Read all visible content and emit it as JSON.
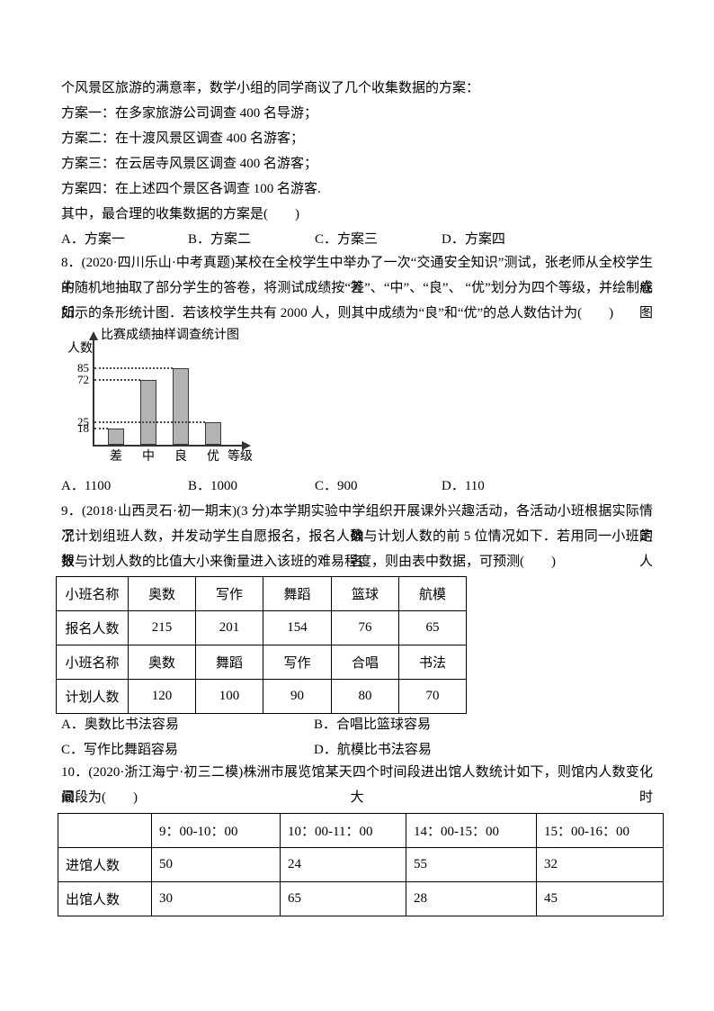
{
  "intro": {
    "lines": [
      "个风景区旅游的满意率，数学小组的同学商议了几个收集数据的方案：",
      "方案一：在多家旅游公司调查 400 名导游；",
      "方案二：在十渡风景区调查 400 名游客；",
      "方案三：在云居寺风景区调查 400 名游客；",
      "方案四：在上述四个景区各调查 100 名游客.",
      "其中，最合理的收集数据的方案是(　　)"
    ],
    "options": [
      "A．方案一",
      "B．方案二",
      "C．方案三",
      "D．方案四"
    ]
  },
  "q8": {
    "lines": [
      "8．(2020·四川乐山·中考真题)某校在全校学生中举办了一次“交通安全知识”测试，张老师从全校学生的答卷",
      "中随机地抽取了部分学生的答卷，将测试成绩按“差”、“中”、“良”、 “优”划分为四个等级，并绘制成如图",
      "所示的条形统计图．若该校学生共有 2000 人，则其中成绩为“良”和“优”的总人数估计为(　　)"
    ],
    "options": [
      "A．1100",
      "B．1000",
      "C．900",
      "D．110"
    ]
  },
  "chart_data": {
    "type": "bar",
    "title": "比赛成绩抽样调查统计图",
    "xlabel": "等级",
    "ylabel": "人数",
    "categories": [
      "差",
      "中",
      "良",
      "优"
    ],
    "values": [
      18,
      72,
      85,
      25
    ],
    "yticks": [
      18,
      25,
      72,
      85
    ],
    "ylim": [
      0,
      100
    ],
    "grid": "dashed-line-from-axis-to-bar",
    "legend": "none",
    "bar_color": "#b3b3b3",
    "bar_border": "#3a3a3a"
  },
  "q9": {
    "lines": [
      "9．(2018·山西灵石·初一期末)(3 分)本学期实验中学组织开展课外兴趣活动，各活动小班根据实际情况确定",
      "了计划组班人数，并发动学生自愿报名，报名人数与计划人数的前 5 位情况如下．若用同一小班的报名人",
      "数与计划人数的比值大小来衡量进入该班的难易程度，则由表中数据，可预测(　　)"
    ],
    "options": [
      "A．奥数比书法容易",
      "B．合唱比篮球容易",
      "C．写作比舞蹈容易",
      "D．航模比书法容易"
    ]
  },
  "table1": {
    "rows": [
      [
        "小班名称",
        "奥数",
        "写作",
        "舞蹈",
        "篮球",
        "航模"
      ],
      [
        "报名人数",
        "215",
        "201",
        "154",
        "76",
        "65"
      ],
      [
        "小班名称",
        "奥数",
        "舞蹈",
        "写作",
        "合唱",
        "书法"
      ],
      [
        "计划人数",
        "120",
        "100",
        "90",
        "80",
        "70"
      ]
    ]
  },
  "q10": {
    "lines": [
      "10．(2020·浙江海宁·初三二模)株洲市展览馆某天四个时间段进出馆人数统计如下，则馆内人数变化最大时",
      "间段为(　　)"
    ]
  },
  "table2": {
    "rows": [
      [
        "",
        "9：00-10：00",
        "10：00-11：00",
        "14：00-15：00",
        "15：00-16：00"
      ],
      [
        "进馆人数",
        "50",
        "24",
        "55",
        "32"
      ],
      [
        "出馆人数",
        "30",
        "65",
        "28",
        "45"
      ]
    ]
  }
}
